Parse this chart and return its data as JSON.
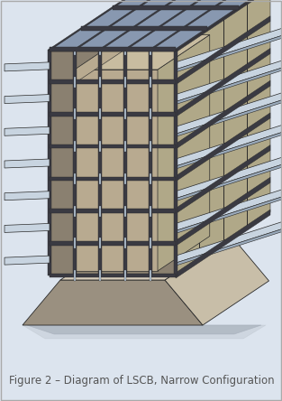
{
  "caption": "Figure 2 – Diagram of LSCB, Narrow Configuration",
  "caption_fontsize": 8.5,
  "caption_color": "#555555",
  "bg_color": "#dce4ee",
  "fig_width": 3.13,
  "fig_height": 4.44,
  "border_color": "#aaaaaa",
  "border_linewidth": 1.0,
  "colors": {
    "steel_dark": "#2a2a2a",
    "steel_frame": "#3a3a42",
    "steel_light": "#8898b0",
    "steel_highlight": "#b8c8d8",
    "concrete_front": "#8a8070",
    "concrete_light": "#b0a888",
    "concrete_top": "#c8bca0",
    "concrete_inner": "#b8aa90",
    "base_front": "#9a9080",
    "base_side": "#c8bea8",
    "base_top": "#d8cebc",
    "shadow": "#a0a8b0",
    "bg": "#dce4ee",
    "strip_top": "#c8d4e0",
    "strip_side": "#9aaabb"
  }
}
